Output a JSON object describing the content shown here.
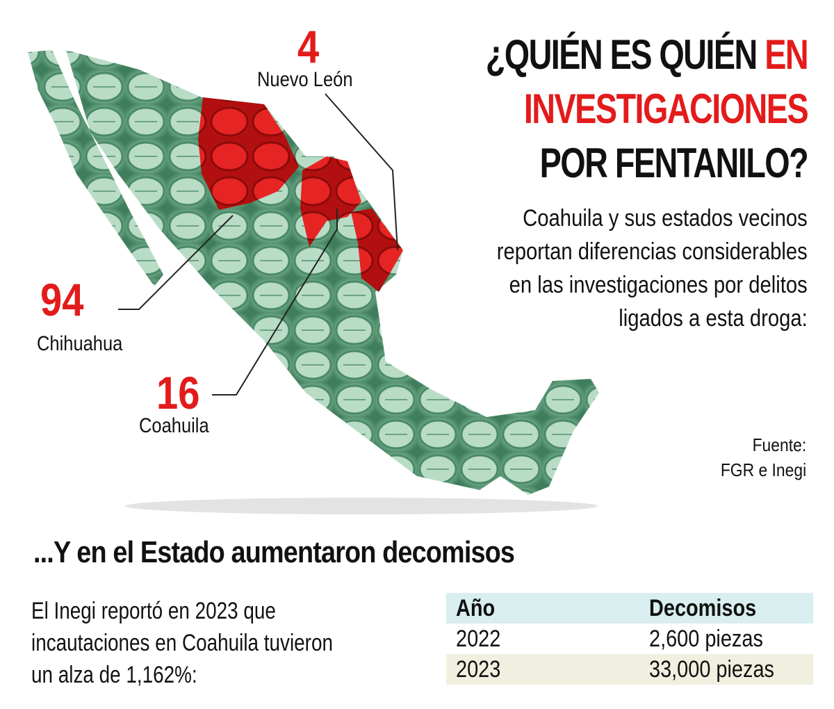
{
  "title": {
    "line1": "¿QUIÉN ES QUIÉN",
    "line1_red": "EN",
    "line2": "INVESTIGACIONES",
    "line3": "POR FENTANILO?"
  },
  "intro": [
    "Coahuila y sus estados vecinos",
    "reportan diferencias considerables",
    "en las investigaciones por delitos",
    "ligados a esta droga:"
  ],
  "states": [
    {
      "name": "Nuevo León",
      "value": "4"
    },
    {
      "name": "Chihuahua",
      "value": "94"
    },
    {
      "name": "Coahuila",
      "value": "16"
    }
  ],
  "source": {
    "label": "Fuente:",
    "text": "FGR e Inegi"
  },
  "subtitle": "...Y en el Estado aumentaron decomisos",
  "note": [
    "El Inegi reportó en 2023 que",
    "incautaciones en Coahuila tuvieron",
    "un alza de 1,162%:"
  ],
  "table": {
    "headers": [
      "Año",
      "Decomisos"
    ],
    "rows": [
      [
        "2022",
        "2,600 piezas"
      ],
      [
        "2023",
        "33,000 piezas"
      ]
    ]
  },
  "colors": {
    "accent_red": "#e31b1b",
    "map_green": "#6fae8e",
    "table_header": "#d9eeee",
    "table_alt": "#f1f0e0"
  }
}
